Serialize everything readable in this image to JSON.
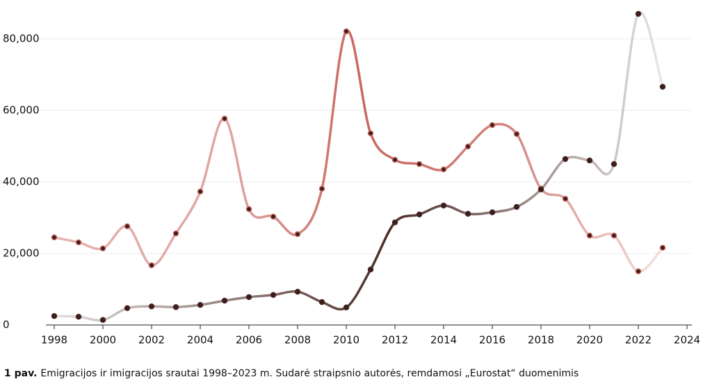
{
  "chart_data": {
    "type": "line",
    "caption_label": "1 pav.",
    "caption": "Emigracijos ir imigracijos srautai 1998–2023 m. Sudarė straipsnio autorės, remdamosi „Eurostat“ duomenimis",
    "x": [
      1998,
      1999,
      2000,
      2001,
      2002,
      2003,
      2004,
      2005,
      2006,
      2007,
      2008,
      2009,
      2010,
      2011,
      2012,
      2013,
      2014,
      2015,
      2016,
      2017,
      2018,
      2019,
      2020,
      2021,
      2022,
      2023
    ],
    "series": [
      {
        "color": "#c9675f",
        "values": [
          24500,
          23100,
          21400,
          27600,
          16700,
          25600,
          37300,
          57700,
          32400,
          30300,
          25400,
          38100,
          82100,
          53600,
          46200,
          45000,
          43500,
          49900,
          55900,
          53400,
          38100,
          35300,
          25000,
          25000,
          15000,
          21600
        ]
      },
      {
        "color": "#4a2a26",
        "values": [
          2500,
          2300,
          1400,
          4700,
          5200,
          5000,
          5600,
          6800,
          7800,
          8400,
          9300,
          6400,
          4900,
          15500,
          28700,
          30900,
          33400,
          31100,
          31500,
          33000,
          37900,
          46400,
          46000,
          45000,
          87000,
          66600
        ]
      }
    ],
    "xlim": [
      1998,
      2024
    ],
    "xticks": [
      1998,
      2000,
      2002,
      2004,
      2006,
      2008,
      2010,
      2012,
      2014,
      2016,
      2018,
      2020,
      2022,
      2024
    ],
    "ylim": [
      0,
      90000
    ],
    "yticks": [
      0,
      {
        "value": 20000,
        "label": "20,000"
      },
      {
        "value": 40000,
        "label": "40,000"
      },
      {
        "value": 60000,
        "label": "60,000"
      },
      {
        "value": 80000,
        "label": "80,000"
      }
    ],
    "grid": true
  }
}
